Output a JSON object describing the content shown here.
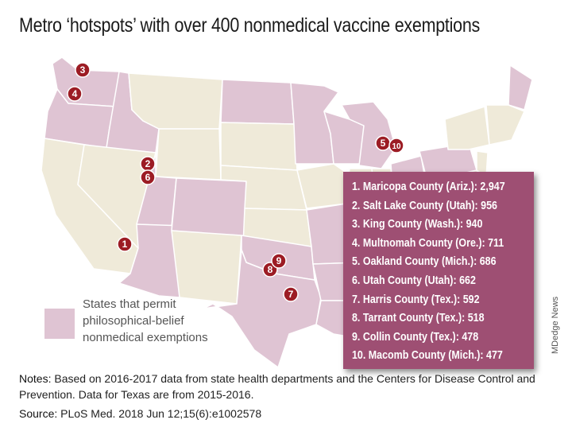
{
  "title": "Metro ‘hotspots’ with over 400 nonmedical vaccine exemptions",
  "colors": {
    "permit_state": "#dfc4d3",
    "other_state": "#efead9",
    "state_border": "#ffffff",
    "marker_fill": "#9c1c24",
    "marker_text": "#ffffff",
    "ranking_box": "#9e4f73",
    "ranking_text": "#ffffff"
  },
  "legend": {
    "lines": [
      "States that permit",
      "philosophical-belief",
      "nonmedical exemptions"
    ]
  },
  "markers": [
    {
      "label": "1",
      "county": "Maricopa County",
      "state": "Ariz."
    },
    {
      "label": "2",
      "county": "Salt Lake County",
      "state": "Utah"
    },
    {
      "label": "3",
      "county": "King County",
      "state": "Wash."
    },
    {
      "label": "4",
      "county": "Multnomah County",
      "state": "Ore."
    },
    {
      "label": "5",
      "county": "Oakland County",
      "state": "Mich."
    },
    {
      "label": "6",
      "county": "Utah County",
      "state": "Utah"
    },
    {
      "label": "7",
      "county": "Harris County",
      "state": "Tex."
    },
    {
      "label": "8",
      "county": "Tarrant County",
      "state": "Tex."
    },
    {
      "label": "9",
      "county": "Collin County",
      "state": "Tex."
    },
    {
      "label": "10",
      "county": "Macomb County",
      "state": "Mich."
    }
  ],
  "ranking": [
    "1. Maricopa County (Ariz.): 2,947",
    "2. Salt Lake County (Utah): 956",
    "3. King County (Wash.): 940",
    "4. Multnomah County (Ore.): 711",
    "5. Oakland County (Mich.): 686",
    "6. Utah County (Utah): 662",
    "7. Harris County (Tex.): 592",
    "8. Tarrant County (Tex.): 518",
    "9. Collin County (Tex.): 478",
    "10. Macomb County (Mich.): 477"
  ],
  "exemptions": [
    2947,
    956,
    940,
    711,
    686,
    662,
    592,
    518,
    478,
    477
  ],
  "credit": "MDedge News",
  "notes": {
    "lead": "Notes:",
    "text": "Based on 2016-2017 data from state health departments and the Centers for Disease Control and Prevention. Data for Texas are from 2015-2016."
  },
  "source": {
    "lead": "Source:",
    "text": "PLoS Med. 2018 Jun 12;15(6):e1002578"
  }
}
